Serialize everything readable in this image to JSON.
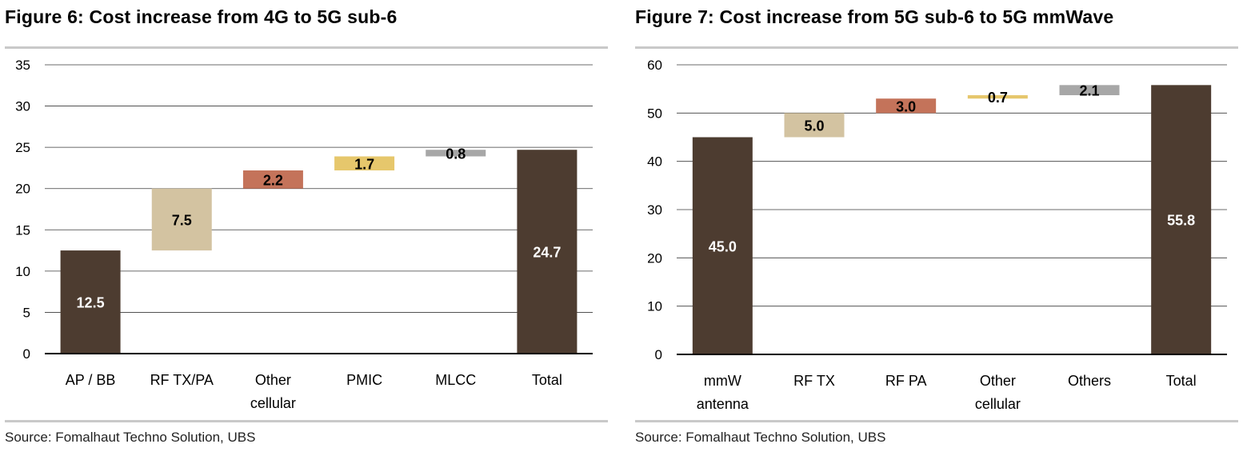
{
  "chart_data": [
    {
      "type": "bar",
      "title": "Figure 6: Cost increase from 4G to 5G sub-6",
      "source": "Source:  Fomalhaut Techno Solution, UBS",
      "categories": [
        [
          "AP / BB"
        ],
        [
          "RF TX/PA"
        ],
        [
          "Other",
          "cellular"
        ],
        [
          "PMIC"
        ],
        [
          "MLCC"
        ],
        [
          "Total"
        ]
      ],
      "values": [
        12.5,
        7.5,
        2.2,
        1.7,
        0.8,
        24.7
      ],
      "bases": [
        0,
        12.5,
        20.0,
        22.2,
        23.9,
        0
      ],
      "labels": [
        "12.5",
        "7.5",
        "2.2",
        "1.7",
        "0.8",
        "24.7"
      ],
      "colors": [
        "#4d3c30",
        "#d3c3a1",
        "#c4735a",
        "#e6c76c",
        "#a7a7a7",
        "#4d3c30"
      ],
      "label_colors": [
        "#ffffff",
        "#000000",
        "#000000",
        "#000000",
        "#000000",
        "#ffffff"
      ],
      "yticks": [
        0,
        5,
        10,
        15,
        20,
        25,
        30,
        35
      ],
      "ylim": [
        0,
        35
      ],
      "grid": true
    },
    {
      "type": "bar",
      "title": "Figure 7: Cost increase from 5G sub-6 to 5G mmWave",
      "source": "Source:  Fomalhaut Techno Solution, UBS",
      "categories": [
        [
          "mmW",
          "antenna"
        ],
        [
          "RF TX"
        ],
        [
          "RF PA"
        ],
        [
          "Other",
          "cellular"
        ],
        [
          "Others"
        ],
        [
          "Total"
        ]
      ],
      "values": [
        45.0,
        5.0,
        3.0,
        0.7,
        2.1,
        55.8
      ],
      "bases": [
        0,
        45.0,
        50.0,
        53.0,
        53.7,
        0
      ],
      "labels": [
        "45.0",
        "5.0",
        "3.0",
        "0.7",
        "2.1",
        "55.8"
      ],
      "colors": [
        "#4d3c30",
        "#d3c3a1",
        "#c4735a",
        "#e6c76c",
        "#a7a7a7",
        "#4d3c30"
      ],
      "label_colors": [
        "#ffffff",
        "#000000",
        "#000000",
        "#000000",
        "#000000",
        "#ffffff"
      ],
      "yticks": [
        0,
        10,
        20,
        30,
        40,
        50,
        60
      ],
      "ylim": [
        0,
        60
      ],
      "grid": true
    }
  ]
}
